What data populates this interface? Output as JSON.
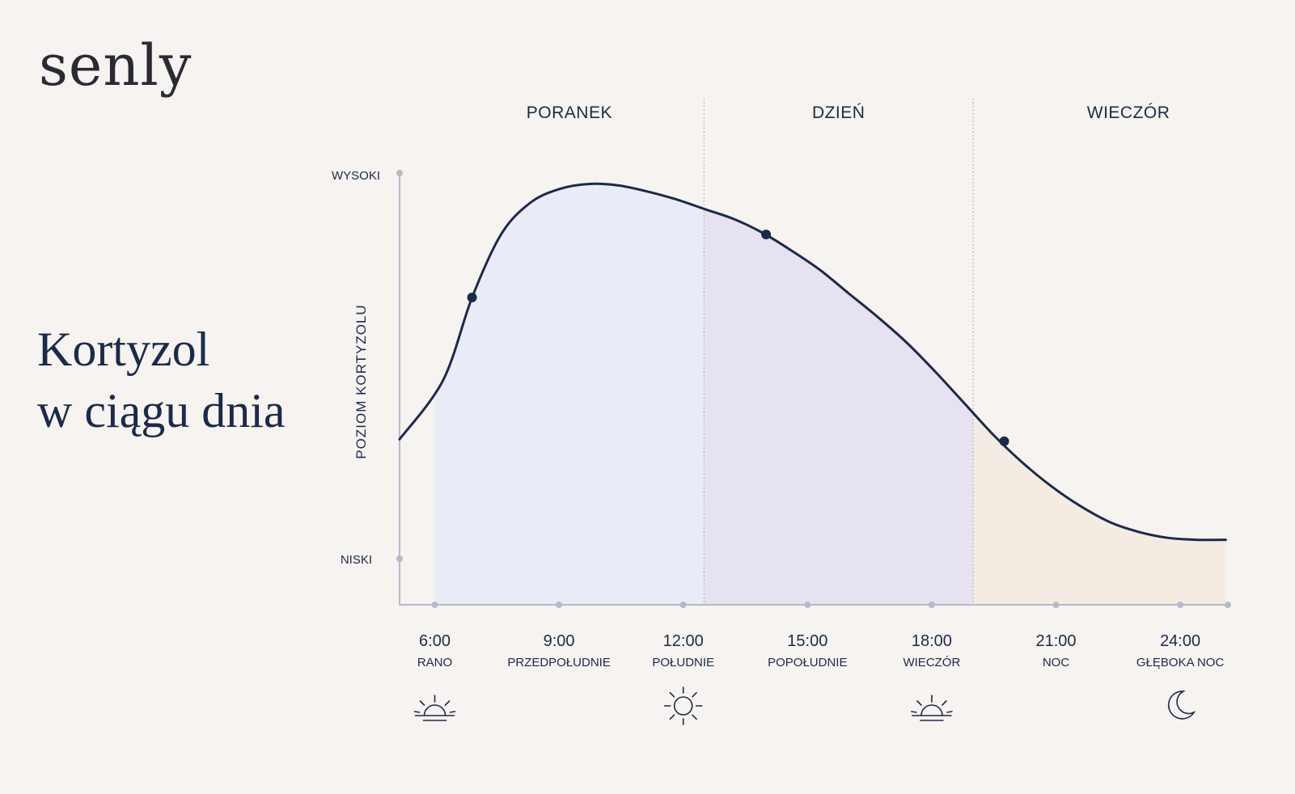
{
  "brand": {
    "logo": "senly"
  },
  "heading": {
    "line1": "Kortyzol",
    "line2": "w ciągu dnia"
  },
  "chart_data": {
    "type": "area",
    "title": "Kortyzol w ciągu dnia",
    "ylabel": "POZIOM KORTYZOLU",
    "y_levels": {
      "high": "WYSOKI",
      "low": "NISKI"
    },
    "y_scale": "qualitative",
    "grid": false,
    "sections": [
      {
        "label": "PORANEK",
        "from": 6,
        "to": 12.5,
        "color": "#e9ecf6"
      },
      {
        "label": "DZIEŃ",
        "from": 12.5,
        "to": 19,
        "color": "#e6e2f0"
      },
      {
        "label": "WIECZÓR",
        "from": 19,
        "to": 26.5,
        "color": "#f4ebe3"
      }
    ],
    "x_ticks": [
      {
        "time": "6:00",
        "label": "RANO",
        "x": 6,
        "icon": "sunrise-icon"
      },
      {
        "time": "9:00",
        "label": "PRZEDPOŁUDNIE",
        "x": 9,
        "icon": ""
      },
      {
        "time": "12:00",
        "label": "POŁUDNIE",
        "x": 12,
        "icon": "sun-icon"
      },
      {
        "time": "15:00",
        "label": "POPOŁUDNIE",
        "x": 15,
        "icon": ""
      },
      {
        "time": "18:00",
        "label": "WIECZÓR",
        "x": 18,
        "icon": "sunset-icon"
      },
      {
        "time": "21:00",
        "label": "NOC",
        "x": 21,
        "icon": ""
      },
      {
        "time": "24:00",
        "label": "GŁĘBOKA NOC",
        "x": 24,
        "icon": "moon-icon"
      }
    ],
    "xlim": [
      5.15,
      25.15
    ],
    "ylim": [
      0,
      1.1
    ],
    "series": [
      {
        "x": [
          5.15,
          6.2,
          6.9,
          7.6,
          8.3,
          9.0,
          9.7,
          10.4,
          11.1,
          11.8,
          12.5,
          13.2,
          13.9,
          14.6,
          15.3,
          16.0,
          16.7,
          17.4,
          18.1,
          18.8,
          19.5,
          20.2,
          20.9,
          21.6,
          22.3,
          23.0,
          23.7,
          24.4,
          25.1
        ],
        "values": [
          0.42,
          0.57,
          0.78,
          0.94,
          1.02,
          1.055,
          1.068,
          1.065,
          1.05,
          1.03,
          1.005,
          0.98,
          0.945,
          0.9,
          0.85,
          0.79,
          0.73,
          0.665,
          0.59,
          0.51,
          0.43,
          0.36,
          0.3,
          0.25,
          0.21,
          0.185,
          0.17,
          0.165,
          0.165
        ]
      }
    ],
    "highlighted_points": [
      {
        "x": 6.9,
        "y": 0.78
      },
      {
        "x": 14.0,
        "y": 0.94
      },
      {
        "x": 19.75,
        "y": 0.415
      }
    ],
    "colors": {
      "line": "#1c2a4a",
      "axis": "#b8b8cc",
      "divider": "#9a9aa8"
    }
  }
}
